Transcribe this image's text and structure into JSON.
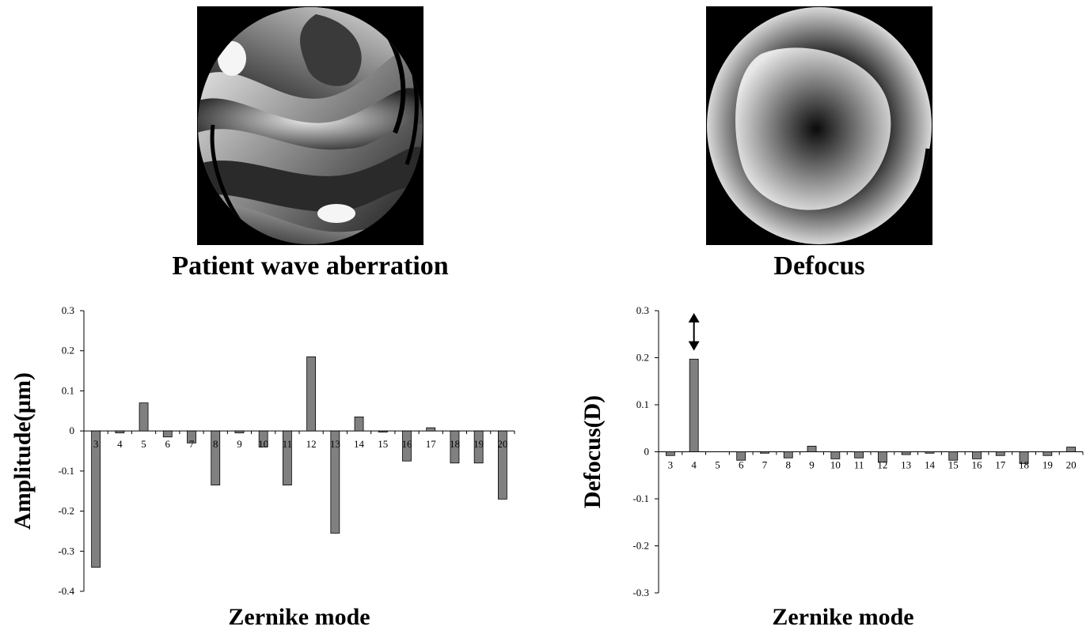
{
  "figure": {
    "left_image": {
      "name": "patient-wave-aberration-map",
      "caption": "Patient wave aberration"
    },
    "right_image": {
      "name": "defocus-map",
      "caption": "Defocus"
    }
  },
  "colors": {
    "bar": "#808080",
    "bar_stroke": "#000000",
    "axis": "#000000",
    "background": "#ffffff"
  },
  "chart_data": [
    {
      "type": "bar",
      "categories": [
        "3",
        "4",
        "5",
        "6",
        "7",
        "8",
        "9",
        "10",
        "11",
        "12",
        "13",
        "14",
        "15",
        "16",
        "17",
        "18",
        "19",
        "20"
      ],
      "values": [
        -0.34,
        -0.005,
        0.07,
        -0.015,
        -0.03,
        -0.135,
        -0.005,
        -0.04,
        -0.135,
        0.185,
        -0.255,
        0.035,
        -0.003,
        -0.075,
        0.008,
        -0.08,
        -0.08,
        -0.17
      ],
      "xlabel": "Zernike mode",
      "ylabel": "Amplitude(µm)",
      "ylim": [
        -0.4,
        0.3
      ],
      "yticks": [
        "0.3",
        "0.2",
        "0.1",
        "0",
        "-0.1",
        "-0.2",
        "-0.3",
        "-0.4"
      ],
      "grid": false
    },
    {
      "type": "bar",
      "categories": [
        "3",
        "4",
        "5",
        "6",
        "7",
        "8",
        "9",
        "10",
        "11",
        "12",
        "13",
        "14",
        "15",
        "16",
        "17",
        "18",
        "19",
        "20"
      ],
      "values": [
        -0.008,
        0.197,
        0.0,
        -0.018,
        -0.003,
        -0.013,
        0.012,
        -0.015,
        -0.013,
        -0.022,
        -0.006,
        -0.003,
        -0.018,
        -0.015,
        -0.008,
        -0.025,
        -0.008,
        0.01
      ],
      "xlabel": "Zernike mode",
      "ylabel": "Defocus(D)",
      "ylim": [
        -0.3,
        0.3
      ],
      "yticks": [
        "0.3",
        "0.2",
        "0.1",
        "0",
        "-0.1",
        "-0.2",
        "-0.3"
      ],
      "grid": false,
      "annotation": {
        "type": "double-arrow",
        "category": "4"
      }
    }
  ]
}
